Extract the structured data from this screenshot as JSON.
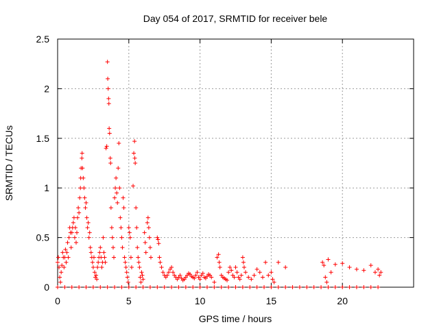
{
  "chart_data": {
    "type": "scatter",
    "title": "Day 054 of 2017, SRMTID for receiver bele",
    "xlabel": "GPS time / hours",
    "ylabel": "SRMTID / TECUs",
    "xlim": [
      0,
      25
    ],
    "ylim": [
      0,
      2.5
    ],
    "x_ticks": [
      0,
      5,
      10,
      15,
      20
    ],
    "x_tick_labels": [
      "0",
      "5",
      "10",
      "15",
      "20"
    ],
    "y_ticks": [
      0,
      0.5,
      1,
      1.5,
      2,
      2.5
    ],
    "y_tick_labels": [
      "0",
      "0.5",
      "1",
      "1.5",
      "2",
      "2.5"
    ],
    "grid": true,
    "marker": "+",
    "color": "#ff0000",
    "series": [
      {
        "name": "SRMTID",
        "points": [
          [
            0.0,
            0.25
          ],
          [
            0.05,
            0.3
          ],
          [
            0.1,
            0.2
          ],
          [
            0.15,
            0.1
          ],
          [
            0.2,
            0.05
          ],
          [
            0.25,
            0.15
          ],
          [
            0.3,
            0.22
          ],
          [
            0.35,
            0.35
          ],
          [
            0.4,
            0.3
          ],
          [
            0.45,
            0.2
          ],
          [
            0.5,
            0.3
          ],
          [
            0.55,
            0.38
          ],
          [
            0.6,
            0.25
          ],
          [
            0.65,
            0.35
          ],
          [
            0.7,
            0.45
          ],
          [
            0.75,
            0.3
          ],
          [
            0.8,
            0.5
          ],
          [
            0.85,
            0.6
          ],
          [
            0.9,
            0.55
          ],
          [
            0.95,
            0.4
          ],
          [
            1.0,
            0.55
          ],
          [
            1.05,
            0.6
          ],
          [
            1.1,
            0.65
          ],
          [
            1.15,
            0.7
          ],
          [
            1.2,
            0.5
          ],
          [
            1.25,
            0.6
          ],
          [
            1.3,
            0.45
          ],
          [
            1.35,
            0.55
          ],
          [
            1.4,
            0.7
          ],
          [
            1.45,
            0.8
          ],
          [
            1.5,
            0.75
          ],
          [
            1.55,
            0.9
          ],
          [
            1.6,
            1.0
          ],
          [
            1.62,
            1.1
          ],
          [
            1.65,
            1.2
          ],
          [
            1.7,
            1.3
          ],
          [
            1.72,
            1.35
          ],
          [
            1.75,
            1.2
          ],
          [
            1.8,
            1.1
          ],
          [
            1.85,
            1.0
          ],
          [
            1.9,
            0.9
          ],
          [
            1.95,
            0.8
          ],
          [
            2.0,
            0.85
          ],
          [
            2.05,
            0.7
          ],
          [
            2.1,
            0.6
          ],
          [
            2.15,
            0.65
          ],
          [
            2.2,
            0.5
          ],
          [
            2.25,
            0.55
          ],
          [
            2.3,
            0.4
          ],
          [
            2.35,
            0.35
          ],
          [
            2.4,
            0.3
          ],
          [
            2.45,
            0.25
          ],
          [
            2.5,
            0.2
          ],
          [
            2.55,
            0.3
          ],
          [
            2.6,
            0.15
          ],
          [
            2.65,
            0.1
          ],
          [
            2.7,
            0.12
          ],
          [
            2.75,
            0.08
          ],
          [
            2.8,
            0.2
          ],
          [
            2.85,
            0.25
          ],
          [
            2.9,
            0.3
          ],
          [
            2.95,
            0.35
          ],
          [
            3.0,
            0.4
          ],
          [
            3.05,
            0.3
          ],
          [
            3.1,
            0.2
          ],
          [
            3.15,
            0.25
          ],
          [
            3.2,
            0.5
          ],
          [
            3.25,
            0.35
          ],
          [
            3.3,
            0.3
          ],
          [
            3.35,
            0.25
          ],
          [
            3.4,
            1.4
          ],
          [
            3.45,
            1.42
          ],
          [
            3.5,
            2.27
          ],
          [
            3.52,
            2.1
          ],
          [
            3.55,
            2.0
          ],
          [
            3.58,
            1.9
          ],
          [
            3.6,
            1.85
          ],
          [
            3.62,
            1.6
          ],
          [
            3.65,
            1.55
          ],
          [
            3.7,
            1.3
          ],
          [
            3.72,
            1.25
          ],
          [
            3.75,
            0.8
          ],
          [
            3.8,
            0.6
          ],
          [
            3.85,
            0.5
          ],
          [
            3.9,
            0.4
          ],
          [
            3.95,
            0.3
          ],
          [
            4.0,
            0.9
          ],
          [
            4.05,
            1.0
          ],
          [
            4.1,
            1.1
          ],
          [
            4.15,
            0.95
          ],
          [
            4.2,
            0.85
          ],
          [
            4.25,
            1.2
          ],
          [
            4.3,
            1.45
          ],
          [
            4.35,
            1.0
          ],
          [
            4.4,
            0.7
          ],
          [
            4.45,
            0.6
          ],
          [
            4.5,
            0.5
          ],
          [
            4.55,
            0.4
          ],
          [
            4.6,
            0.9
          ],
          [
            4.65,
            0.8
          ],
          [
            4.7,
            0.3
          ],
          [
            4.75,
            0.25
          ],
          [
            4.8,
            0.2
          ],
          [
            4.85,
            0.15
          ],
          [
            4.9,
            0.1
          ],
          [
            4.95,
            0.05
          ],
          [
            5.0,
            0.6
          ],
          [
            5.05,
            0.55
          ],
          [
            5.1,
            0.5
          ],
          [
            5.15,
            0.3
          ],
          [
            5.2,
            0.2
          ],
          [
            5.3,
            1.02
          ],
          [
            5.35,
            1.35
          ],
          [
            5.4,
            1.47
          ],
          [
            5.42,
            1.3
          ],
          [
            5.45,
            1.25
          ],
          [
            5.5,
            0.8
          ],
          [
            5.55,
            0.6
          ],
          [
            5.6,
            0.4
          ],
          [
            5.65,
            0.3
          ],
          [
            5.7,
            0.25
          ],
          [
            5.75,
            0.2
          ],
          [
            5.8,
            0.1
          ],
          [
            5.85,
            0.05
          ],
          [
            5.9,
            0.15
          ],
          [
            5.95,
            0.12
          ],
          [
            6.0,
            0.08
          ],
          [
            6.1,
            0.55
          ],
          [
            6.15,
            0.45
          ],
          [
            6.2,
            0.35
          ],
          [
            6.3,
            0.65
          ],
          [
            6.35,
            0.7
          ],
          [
            6.4,
            0.6
          ],
          [
            6.45,
            0.5
          ],
          [
            6.5,
            0.4
          ],
          [
            6.55,
            0.3
          ],
          [
            7.0,
            0.5
          ],
          [
            7.05,
            0.48
          ],
          [
            7.1,
            0.44
          ],
          [
            7.15,
            0.3
          ],
          [
            7.2,
            0.25
          ],
          [
            7.3,
            0.2
          ],
          [
            7.4,
            0.15
          ],
          [
            7.5,
            0.12
          ],
          [
            7.6,
            0.1
          ],
          [
            7.7,
            0.12
          ],
          [
            7.8,
            0.15
          ],
          [
            7.9,
            0.18
          ],
          [
            8.0,
            0.2
          ],
          [
            8.1,
            0.15
          ],
          [
            8.2,
            0.12
          ],
          [
            8.3,
            0.1
          ],
          [
            8.4,
            0.08
          ],
          [
            8.5,
            0.1
          ],
          [
            8.6,
            0.12
          ],
          [
            8.7,
            0.09
          ],
          [
            8.8,
            0.07
          ],
          [
            8.9,
            0.08
          ],
          [
            9.0,
            0.1
          ],
          [
            9.1,
            0.12
          ],
          [
            9.2,
            0.14
          ],
          [
            9.3,
            0.13
          ],
          [
            9.4,
            0.11
          ],
          [
            9.5,
            0.1
          ],
          [
            9.6,
            0.09
          ],
          [
            9.7,
            0.12
          ],
          [
            9.8,
            0.15
          ],
          [
            9.9,
            0.1
          ],
          [
            10.0,
            0.08
          ],
          [
            10.1,
            0.12
          ],
          [
            10.2,
            0.14
          ],
          [
            10.3,
            0.1
          ],
          [
            10.4,
            0.09
          ],
          [
            10.5,
            0.11
          ],
          [
            10.6,
            0.13
          ],
          [
            10.7,
            0.12
          ],
          [
            10.8,
            0.1
          ],
          [
            11.0,
            0.05
          ],
          [
            11.2,
            0.3
          ],
          [
            11.3,
            0.33
          ],
          [
            11.35,
            0.25
          ],
          [
            11.4,
            0.2
          ],
          [
            11.5,
            0.12
          ],
          [
            11.6,
            0.1
          ],
          [
            11.7,
            0.09
          ],
          [
            11.8,
            0.08
          ],
          [
            11.9,
            0.07
          ],
          [
            12.0,
            0.15
          ],
          [
            12.1,
            0.2
          ],
          [
            12.2,
            0.17
          ],
          [
            12.3,
            0.12
          ],
          [
            12.4,
            0.1
          ],
          [
            12.5,
            0.2
          ],
          [
            12.6,
            0.15
          ],
          [
            12.7,
            0.1
          ],
          [
            12.8,
            0.08
          ],
          [
            12.9,
            0.12
          ],
          [
            13.0,
            0.3
          ],
          [
            13.05,
            0.25
          ],
          [
            13.1,
            0.2
          ],
          [
            13.2,
            0.15
          ],
          [
            13.4,
            0.1
          ],
          [
            13.6,
            0.08
          ],
          [
            13.8,
            0.12
          ],
          [
            14.0,
            0.18
          ],
          [
            14.2,
            0.15
          ],
          [
            14.4,
            0.1
          ],
          [
            14.6,
            0.25
          ],
          [
            14.8,
            0.12
          ],
          [
            15.0,
            0.15
          ],
          [
            15.1,
            0.08
          ],
          [
            15.2,
            0.05
          ],
          [
            15.5,
            0.25
          ],
          [
            16.0,
            0.2
          ],
          [
            18.6,
            0.25
          ],
          [
            18.7,
            0.22
          ],
          [
            18.8,
            0.1
          ],
          [
            18.9,
            0.05
          ],
          [
            19.0,
            0.28
          ],
          [
            19.2,
            0.15
          ],
          [
            19.5,
            0.23
          ],
          [
            20.0,
            0.24
          ],
          [
            20.5,
            0.2
          ],
          [
            21.0,
            0.18
          ],
          [
            21.5,
            0.17
          ],
          [
            22.0,
            0.22
          ],
          [
            22.3,
            0.15
          ],
          [
            22.5,
            0.18
          ],
          [
            22.6,
            0.12
          ],
          [
            22.7,
            0.15
          ],
          [
            0.0,
            0.0
          ],
          [
            0.5,
            0.0
          ],
          [
            1.0,
            0.0
          ],
          [
            1.5,
            0.0
          ],
          [
            2.0,
            0.0
          ],
          [
            2.5,
            0.0
          ],
          [
            3.0,
            0.0
          ],
          [
            3.5,
            0.0
          ],
          [
            4.0,
            0.0
          ],
          [
            4.5,
            0.0
          ],
          [
            5.0,
            0.0
          ],
          [
            5.5,
            0.0
          ],
          [
            6.0,
            0.0
          ],
          [
            6.5,
            0.0
          ],
          [
            7.0,
            0.0
          ],
          [
            7.5,
            0.0
          ],
          [
            8.0,
            0.0
          ],
          [
            8.5,
            0.0
          ],
          [
            9.0,
            0.0
          ],
          [
            9.5,
            0.0
          ],
          [
            10.0,
            0.0
          ],
          [
            10.5,
            0.0
          ],
          [
            11.0,
            0.0
          ],
          [
            11.5,
            0.0
          ],
          [
            12.0,
            0.0
          ],
          [
            12.5,
            0.0
          ],
          [
            13.0,
            0.0
          ],
          [
            13.5,
            0.0
          ],
          [
            14.0,
            0.0
          ],
          [
            14.5,
            0.0
          ],
          [
            15.0,
            0.0
          ],
          [
            15.5,
            0.0
          ],
          [
            16.0,
            0.0
          ],
          [
            16.5,
            0.0
          ],
          [
            17.0,
            0.0
          ],
          [
            17.5,
            0.0
          ],
          [
            18.0,
            0.0
          ],
          [
            18.5,
            0.0
          ],
          [
            19.0,
            0.0
          ],
          [
            19.5,
            0.0
          ],
          [
            20.0,
            0.0
          ],
          [
            20.5,
            0.0
          ],
          [
            21.0,
            0.0
          ],
          [
            21.5,
            0.0
          ],
          [
            22.0,
            0.0
          ],
          [
            22.5,
            0.0
          ]
        ]
      }
    ]
  }
}
